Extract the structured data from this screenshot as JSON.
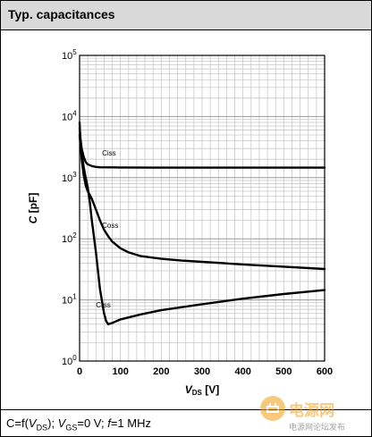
{
  "header": {
    "title": "Typ. capacitances"
  },
  "footer": {
    "caption_parts": {
      "c_func": "C=f(",
      "v1": "V",
      "v1_sub": "DS",
      "close": "); ",
      "v2": "V",
      "v2_sub": "GS",
      "cond": "=0 V; ",
      "f": "f",
      "freq": "=1 MHz"
    }
  },
  "watermark": {
    "brand": "电源网",
    "sub": "电源网论坛发布"
  },
  "chart_data": {
    "type": "line",
    "xlabel_main": "V",
    "xlabel_sub": "DS",
    "xlabel_unit": " [V]",
    "ylabel_main": "C",
    "ylabel_unit": " [pF]",
    "x_ticks": [
      0,
      100,
      200,
      300,
      400,
      500,
      600
    ],
    "x_tick_labels": [
      "0",
      "100",
      "200",
      "300",
      "400",
      "500",
      "600"
    ],
    "xlim": [
      0,
      600
    ],
    "ylim": [
      1,
      100000
    ],
    "y_scale": "log",
    "y_ticks": [
      1,
      10,
      100,
      1000,
      10000,
      100000
    ],
    "y_tick_base": "10",
    "y_tick_exps": [
      "0",
      "1",
      "2",
      "3",
      "4",
      "5"
    ],
    "grid": true,
    "series": [
      {
        "name": "Ciss",
        "x": [
          0,
          2,
          5,
          10,
          15,
          20,
          30,
          40,
          50,
          100,
          200,
          300,
          400,
          500,
          600
        ],
        "y": [
          6500,
          4500,
          3000,
          2200,
          1800,
          1650,
          1550,
          1500,
          1480,
          1470,
          1460,
          1460,
          1460,
          1460,
          1460
        ]
      },
      {
        "name": "Coss",
        "x": [
          0,
          2,
          5,
          10,
          15,
          20,
          30,
          40,
          50,
          60,
          70,
          80,
          100,
          120,
          150,
          200,
          250,
          300,
          400,
          500,
          600
        ],
        "y": [
          8000,
          4000,
          2000,
          1100,
          750,
          600,
          450,
          300,
          200,
          140,
          110,
          90,
          70,
          60,
          52,
          47,
          44,
          42,
          38,
          35,
          32
        ]
      },
      {
        "name": "Crss",
        "x": [
          0,
          2,
          5,
          10,
          15,
          20,
          25,
          30,
          40,
          50,
          60,
          65,
          70,
          80,
          100,
          150,
          200,
          300,
          400,
          500,
          600
        ],
        "y": [
          5000,
          3500,
          2500,
          1500,
          1000,
          700,
          400,
          200,
          60,
          15,
          6,
          4.5,
          4,
          4.2,
          4.8,
          5.8,
          6.8,
          8.5,
          10.5,
          12.5,
          14.5
        ]
      }
    ],
    "series_label_x": [
      55,
      55,
      40
    ],
    "series_label_y": [
      2300,
      150,
      7.5
    ]
  }
}
